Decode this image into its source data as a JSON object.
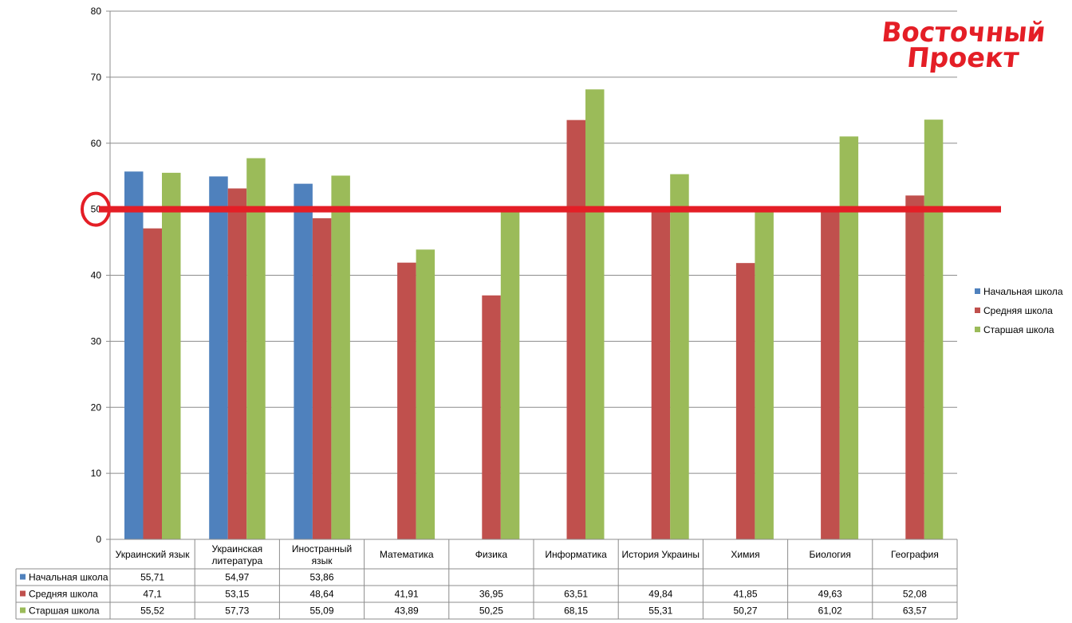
{
  "chart_data": {
    "type": "bar",
    "categories": [
      [
        "Украинский язык"
      ],
      [
        "Украинская",
        "литература"
      ],
      [
        "Иностранный",
        "язык"
      ],
      [
        "Математика"
      ],
      [
        "Физика"
      ],
      [
        "Информатика"
      ],
      [
        "История Украины"
      ],
      [
        "Химия"
      ],
      [
        "Биология"
      ],
      [
        "География"
      ]
    ],
    "series": [
      {
        "name": "Начальная школа",
        "color": "#4f81bd",
        "values": [
          55.71,
          54.97,
          53.86,
          null,
          null,
          null,
          null,
          null,
          null,
          null
        ],
        "labels": [
          "55,71",
          "54,97",
          "53,86",
          "",
          "",
          "",
          "",
          "",
          "",
          ""
        ]
      },
      {
        "name": "Средняя  школа",
        "color": "#c0504d",
        "values": [
          47.1,
          53.15,
          48.64,
          41.91,
          36.95,
          63.51,
          49.84,
          41.85,
          49.63,
          52.08
        ],
        "labels": [
          "47,1",
          "53,15",
          "48,64",
          "41,91",
          "36,95",
          "63,51",
          "49,84",
          "41,85",
          "49,63",
          "52,08"
        ]
      },
      {
        "name": "Старшая школа",
        "color": "#9bbb59",
        "values": [
          55.52,
          57.73,
          55.09,
          43.89,
          50.25,
          68.15,
          55.31,
          50.27,
          61.02,
          63.57
        ],
        "labels": [
          "55,52",
          "57,73",
          "55,09",
          "43,89",
          "50,25",
          "68,15",
          "55,31",
          "50,27",
          "61,02",
          "63,57"
        ]
      }
    ],
    "ylim": [
      0,
      80
    ],
    "yticks": [
      0,
      10,
      20,
      30,
      40,
      50,
      60,
      70,
      80
    ],
    "grid": true,
    "legend": "right",
    "reference_line": {
      "value": 50,
      "color": "#e41e26"
    },
    "data_table": true
  },
  "logo": {
    "line1": "Восточный",
    "line2": "Проект",
    "color": "#e41e26"
  }
}
